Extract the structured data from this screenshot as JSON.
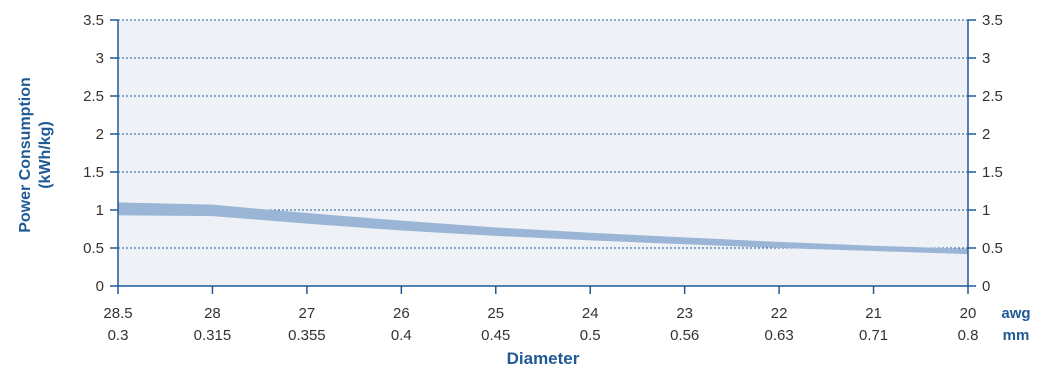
{
  "chart_data": {
    "type": "area",
    "ylabel_lines": [
      "Power Consumption",
      "(kWh/kg)"
    ],
    "xlabel": "Diameter",
    "x_unit_top": "awg",
    "x_unit_bottom": "mm",
    "ylim": [
      0,
      3.5
    ],
    "yticks": [
      "0",
      "0.5",
      "1",
      "1.5",
      "2",
      "2.5",
      "3",
      "3.5"
    ],
    "y_values": [
      0,
      0.5,
      1,
      1.5,
      2,
      2.5,
      3,
      3.5
    ],
    "grid": true,
    "categories_awg": [
      "28.5",
      "28",
      "27",
      "26",
      "25",
      "24",
      "23",
      "22",
      "21",
      "20"
    ],
    "categories_mm": [
      "0.3",
      "0.315",
      "0.355",
      "0.4",
      "0.45",
      "0.5",
      "0.56",
      "0.63",
      "0.71",
      "0.8"
    ],
    "series": [
      {
        "upper": [
          1.1,
          1.07,
          0.96,
          0.86,
          0.77,
          0.7,
          0.64,
          0.58,
          0.53,
          0.49
        ],
        "lower": [
          0.93,
          0.92,
          0.82,
          0.73,
          0.66,
          0.6,
          0.55,
          0.5,
          0.46,
          0.42
        ],
        "color": "#9bb5d6"
      }
    ],
    "colors": {
      "plot_background": "#eef1f5",
      "axis": "#1f5a96",
      "grid": "#1f5a96",
      "band": "#9bb5d6"
    }
  }
}
